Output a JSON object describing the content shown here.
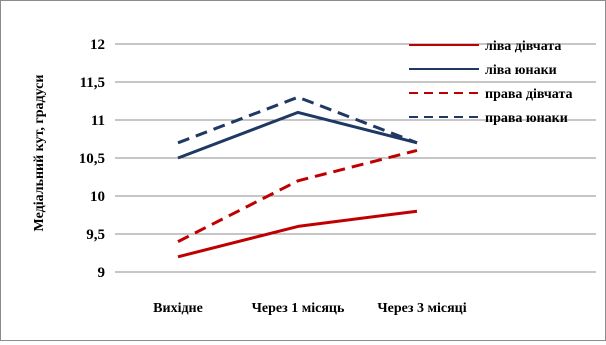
{
  "chart_data": {
    "type": "line",
    "title": "",
    "xlabel": "",
    "ylabel": "Медіальний кут, градуси",
    "categories": [
      "Вихідне",
      "Через 1 місяць",
      "Через 3 місяці"
    ],
    "ylim": [
      9,
      12
    ],
    "yticks": [
      "9",
      "9,5",
      "10",
      "10,5",
      "11",
      "11,5",
      "12"
    ],
    "grid": true,
    "legend_position": "top-right",
    "series": [
      {
        "name": "ліва дівчата",
        "values": [
          9.2,
          9.6,
          9.8
        ],
        "color": "#c00000",
        "dash": "solid"
      },
      {
        "name": "ліва юнаки",
        "values": [
          10.5,
          11.1,
          10.7
        ],
        "color": "#1f3864",
        "dash": "solid"
      },
      {
        "name": "права дівчата",
        "values": [
          9.4,
          10.2,
          10.6
        ],
        "color": "#c00000",
        "dash": "dashed"
      },
      {
        "name": "права юнаки",
        "values": [
          10.7,
          11.3,
          10.7
        ],
        "color": "#1f3864",
        "dash": "dashed"
      }
    ]
  }
}
